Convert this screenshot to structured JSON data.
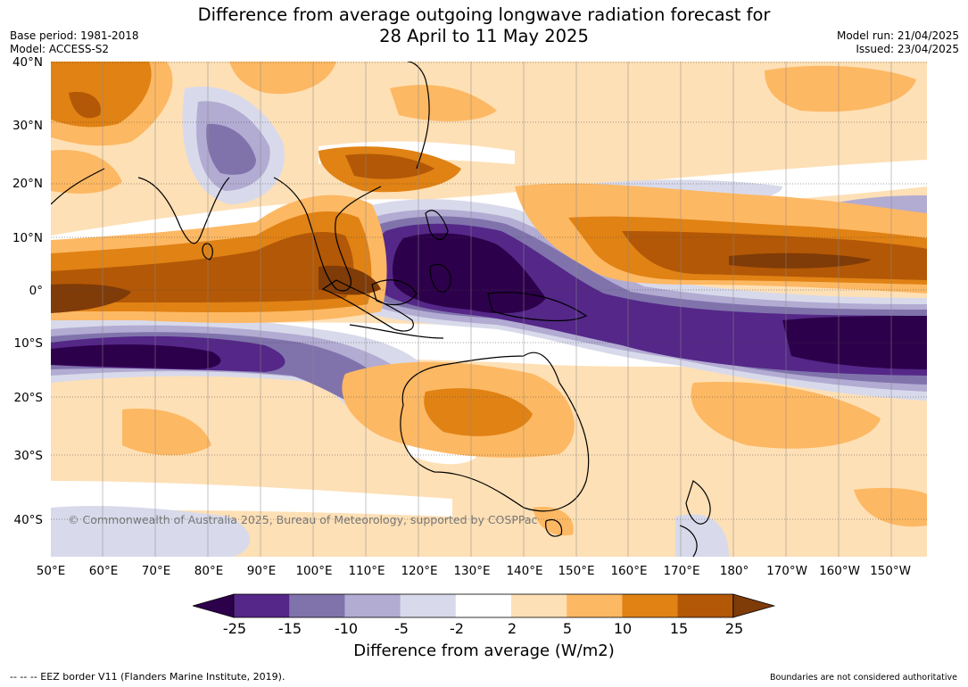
{
  "title_line1": "Difference from average outgoing longwave radiation forecast for",
  "title_line2": "28 April to 11 May 2025",
  "meta": {
    "base_period": "Base period: 1981-2018",
    "model": "Model: ACCESS-S2",
    "model_run": "Model run: 21/04/2025",
    "issued": "Issued: 23/04/2025"
  },
  "lat_labels": [
    "40°N",
    "30°N",
    "20°N",
    "10°N",
    "0°",
    "10°S",
    "20°S",
    "30°S",
    "40°S"
  ],
  "lon_labels": [
    "50°E",
    "60°E",
    "70°E",
    "80°E",
    "90°E",
    "100°E",
    "110°E",
    "120°E",
    "130°E",
    "140°E",
    "150°E",
    "160°E",
    "170°E",
    "180°",
    "170°W",
    "160°W",
    "150°W"
  ],
  "colorbar": {
    "ticks": [
      "-25",
      "-15",
      "-10",
      "-5",
      "-2",
      "2",
      "5",
      "10",
      "15",
      "25"
    ],
    "colors": [
      "#2d004b",
      "#542788",
      "#8073ac",
      "#b2abd2",
      "#d8daeb",
      "#ffffff",
      "#fee0b6",
      "#fdb863",
      "#e08214",
      "#b35806",
      "#7f3b08"
    ],
    "label": "Difference from average (W/m2)"
  },
  "copyright": "© Commonwealth of Australia 2025, Bureau of Meteorology, supported by COSPPac",
  "footer_left": "--  --  -- EEZ border V11 (Flanders Marine Institute, 2019).",
  "footer_right": "Boundaries are not considered authoritative"
}
